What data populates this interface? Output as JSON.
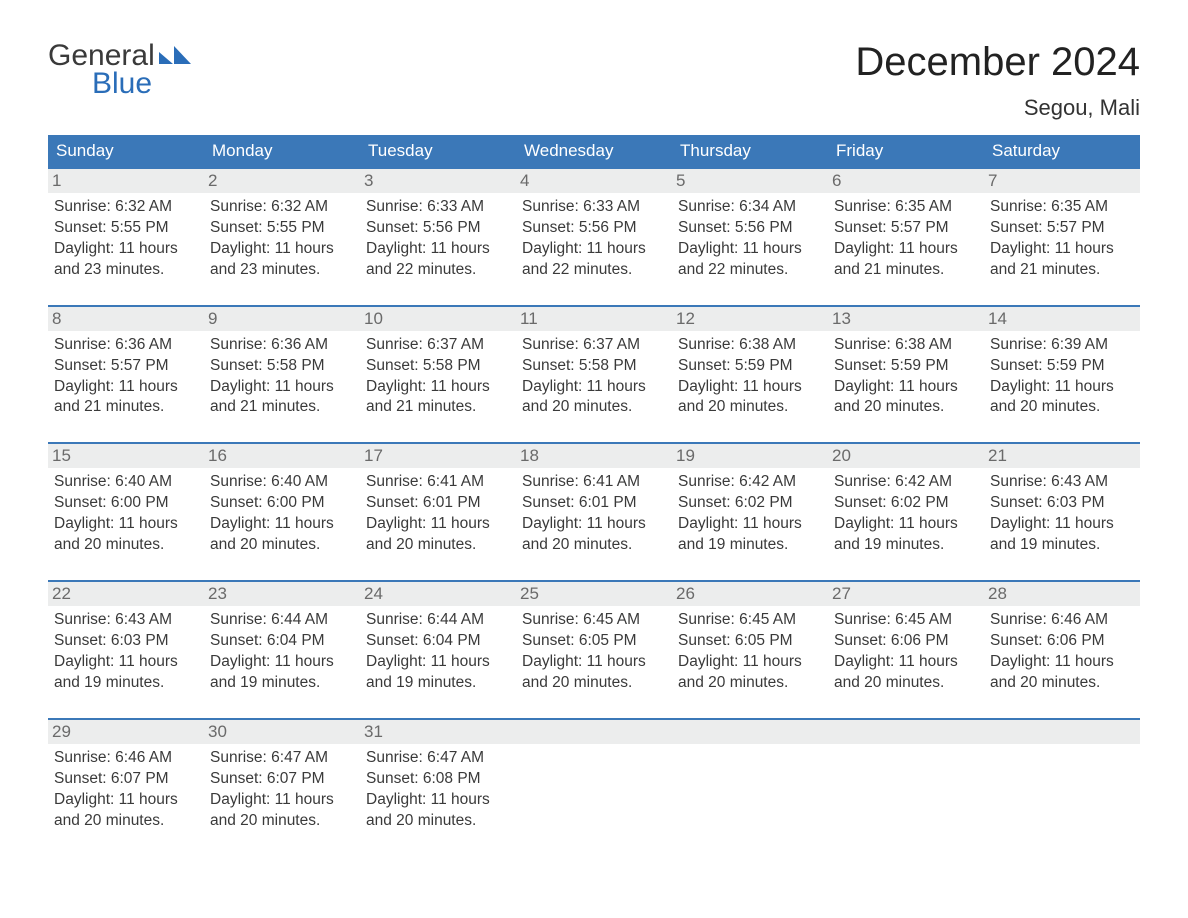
{
  "logo": {
    "word1": "General",
    "word2": "Blue"
  },
  "header": {
    "month_title": "December 2024",
    "location": "Segou, Mali"
  },
  "style": {
    "header_bg": "#3b78b8",
    "header_text": "#ffffff",
    "row_accent": "#3b78b8",
    "daynum_bg": "#eceded",
    "daynum_color": "#6a6a6a",
    "body_text": "#3a3a3a",
    "title_fontsize": 40,
    "location_fontsize": 22,
    "weekday_fontsize": 17,
    "detail_fontsize": 15.5
  },
  "weekdays": [
    "Sunday",
    "Monday",
    "Tuesday",
    "Wednesday",
    "Thursday",
    "Friday",
    "Saturday"
  ],
  "weeks": [
    [
      {
        "n": "1",
        "sunrise": "6:32 AM",
        "sunset": "5:55 PM",
        "daylight_h": "11",
        "daylight_m": "23"
      },
      {
        "n": "2",
        "sunrise": "6:32 AM",
        "sunset": "5:55 PM",
        "daylight_h": "11",
        "daylight_m": "23"
      },
      {
        "n": "3",
        "sunrise": "6:33 AM",
        "sunset": "5:56 PM",
        "daylight_h": "11",
        "daylight_m": "22"
      },
      {
        "n": "4",
        "sunrise": "6:33 AM",
        "sunset": "5:56 PM",
        "daylight_h": "11",
        "daylight_m": "22"
      },
      {
        "n": "5",
        "sunrise": "6:34 AM",
        "sunset": "5:56 PM",
        "daylight_h": "11",
        "daylight_m": "22"
      },
      {
        "n": "6",
        "sunrise": "6:35 AM",
        "sunset": "5:57 PM",
        "daylight_h": "11",
        "daylight_m": "21"
      },
      {
        "n": "7",
        "sunrise": "6:35 AM",
        "sunset": "5:57 PM",
        "daylight_h": "11",
        "daylight_m": "21"
      }
    ],
    [
      {
        "n": "8",
        "sunrise": "6:36 AM",
        "sunset": "5:57 PM",
        "daylight_h": "11",
        "daylight_m": "21"
      },
      {
        "n": "9",
        "sunrise": "6:36 AM",
        "sunset": "5:58 PM",
        "daylight_h": "11",
        "daylight_m": "21"
      },
      {
        "n": "10",
        "sunrise": "6:37 AM",
        "sunset": "5:58 PM",
        "daylight_h": "11",
        "daylight_m": "21"
      },
      {
        "n": "11",
        "sunrise": "6:37 AM",
        "sunset": "5:58 PM",
        "daylight_h": "11",
        "daylight_m": "20"
      },
      {
        "n": "12",
        "sunrise": "6:38 AM",
        "sunset": "5:59 PM",
        "daylight_h": "11",
        "daylight_m": "20"
      },
      {
        "n": "13",
        "sunrise": "6:38 AM",
        "sunset": "5:59 PM",
        "daylight_h": "11",
        "daylight_m": "20"
      },
      {
        "n": "14",
        "sunrise": "6:39 AM",
        "sunset": "5:59 PM",
        "daylight_h": "11",
        "daylight_m": "20"
      }
    ],
    [
      {
        "n": "15",
        "sunrise": "6:40 AM",
        "sunset": "6:00 PM",
        "daylight_h": "11",
        "daylight_m": "20"
      },
      {
        "n": "16",
        "sunrise": "6:40 AM",
        "sunset": "6:00 PM",
        "daylight_h": "11",
        "daylight_m": "20"
      },
      {
        "n": "17",
        "sunrise": "6:41 AM",
        "sunset": "6:01 PM",
        "daylight_h": "11",
        "daylight_m": "20"
      },
      {
        "n": "18",
        "sunrise": "6:41 AM",
        "sunset": "6:01 PM",
        "daylight_h": "11",
        "daylight_m": "20"
      },
      {
        "n": "19",
        "sunrise": "6:42 AM",
        "sunset": "6:02 PM",
        "daylight_h": "11",
        "daylight_m": "19"
      },
      {
        "n": "20",
        "sunrise": "6:42 AM",
        "sunset": "6:02 PM",
        "daylight_h": "11",
        "daylight_m": "19"
      },
      {
        "n": "21",
        "sunrise": "6:43 AM",
        "sunset": "6:03 PM",
        "daylight_h": "11",
        "daylight_m": "19"
      }
    ],
    [
      {
        "n": "22",
        "sunrise": "6:43 AM",
        "sunset": "6:03 PM",
        "daylight_h": "11",
        "daylight_m": "19"
      },
      {
        "n": "23",
        "sunrise": "6:44 AM",
        "sunset": "6:04 PM",
        "daylight_h": "11",
        "daylight_m": "19"
      },
      {
        "n": "24",
        "sunrise": "6:44 AM",
        "sunset": "6:04 PM",
        "daylight_h": "11",
        "daylight_m": "19"
      },
      {
        "n": "25",
        "sunrise": "6:45 AM",
        "sunset": "6:05 PM",
        "daylight_h": "11",
        "daylight_m": "20"
      },
      {
        "n": "26",
        "sunrise": "6:45 AM",
        "sunset": "6:05 PM",
        "daylight_h": "11",
        "daylight_m": "20"
      },
      {
        "n": "27",
        "sunrise": "6:45 AM",
        "sunset": "6:06 PM",
        "daylight_h": "11",
        "daylight_m": "20"
      },
      {
        "n": "28",
        "sunrise": "6:46 AM",
        "sunset": "6:06 PM",
        "daylight_h": "11",
        "daylight_m": "20"
      }
    ],
    [
      {
        "n": "29",
        "sunrise": "6:46 AM",
        "sunset": "6:07 PM",
        "daylight_h": "11",
        "daylight_m": "20"
      },
      {
        "n": "30",
        "sunrise": "6:47 AM",
        "sunset": "6:07 PM",
        "daylight_h": "11",
        "daylight_m": "20"
      },
      {
        "n": "31",
        "sunrise": "6:47 AM",
        "sunset": "6:08 PM",
        "daylight_h": "11",
        "daylight_m": "20"
      },
      null,
      null,
      null,
      null
    ]
  ],
  "labels": {
    "sunrise_prefix": "Sunrise: ",
    "sunset_prefix": "Sunset: ",
    "daylight_prefix": "Daylight: ",
    "hours_word": " hours",
    "and_word": "and ",
    "minutes_word": " minutes."
  }
}
